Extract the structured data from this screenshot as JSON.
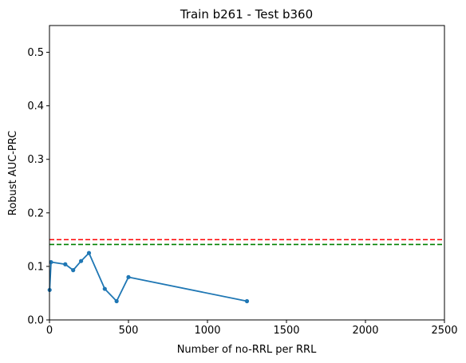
{
  "chart_data": {
    "type": "line",
    "title": "Train b261 - Test b360",
    "xlabel": "Number of no-RRL per RRL",
    "ylabel": "Robust AUC-PRC",
    "xlim": [
      0,
      2500
    ],
    "ylim": [
      0,
      0.55
    ],
    "xticks": [
      0,
      500,
      1000,
      1500,
      2000,
      2500
    ],
    "yticks": [
      0.0,
      0.1,
      0.2,
      0.3,
      0.4,
      0.5
    ],
    "xtick_labels": [
      "0",
      "500",
      "1000",
      "1500",
      "2000",
      "2500"
    ],
    "ytick_labels": [
      "0.0",
      "0.1",
      "0.2",
      "0.3",
      "0.4",
      "0.5"
    ],
    "grid": false,
    "legend": "none",
    "series": [
      {
        "color": "#1f77b4",
        "marker": "circle",
        "x": [
          1,
          10,
          100,
          150,
          200,
          250,
          350,
          425,
          500,
          1250
        ],
        "y": [
          0.056,
          0.108,
          0.104,
          0.093,
          0.11,
          0.125,
          0.058,
          0.035,
          0.08,
          0.035
        ]
      }
    ],
    "reference_lines": [
      {
        "y": 0.15,
        "color": "#ff0000",
        "style": "dashed"
      },
      {
        "y": 0.141,
        "color": "#008000",
        "style": "dashed"
      }
    ]
  }
}
